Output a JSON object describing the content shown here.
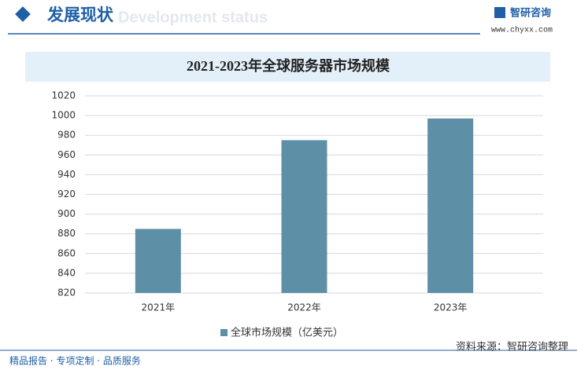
{
  "header": {
    "title": "发展现状",
    "subtitle": "Development status",
    "brand": "智研咨询",
    "url": "www.chyxx.com"
  },
  "chart_data": {
    "type": "bar",
    "title": "2021-2023年全球服务器市场规模",
    "categories": [
      "2021年",
      "2022年",
      "2023年"
    ],
    "series": [
      {
        "name": "全球市场规模（亿美元）",
        "color": "#5d8fa7",
        "values": [
          885,
          975,
          997
        ]
      }
    ],
    "ylim": [
      820,
      1020
    ],
    "yticks": [
      820,
      840,
      860,
      880,
      900,
      920,
      940,
      960,
      980,
      1000,
      1020
    ],
    "grid": true
  },
  "footer": {
    "slogan": "精品报告 · 专项定制 · 品质服务",
    "source": "资料来源：智研咨询整理"
  }
}
